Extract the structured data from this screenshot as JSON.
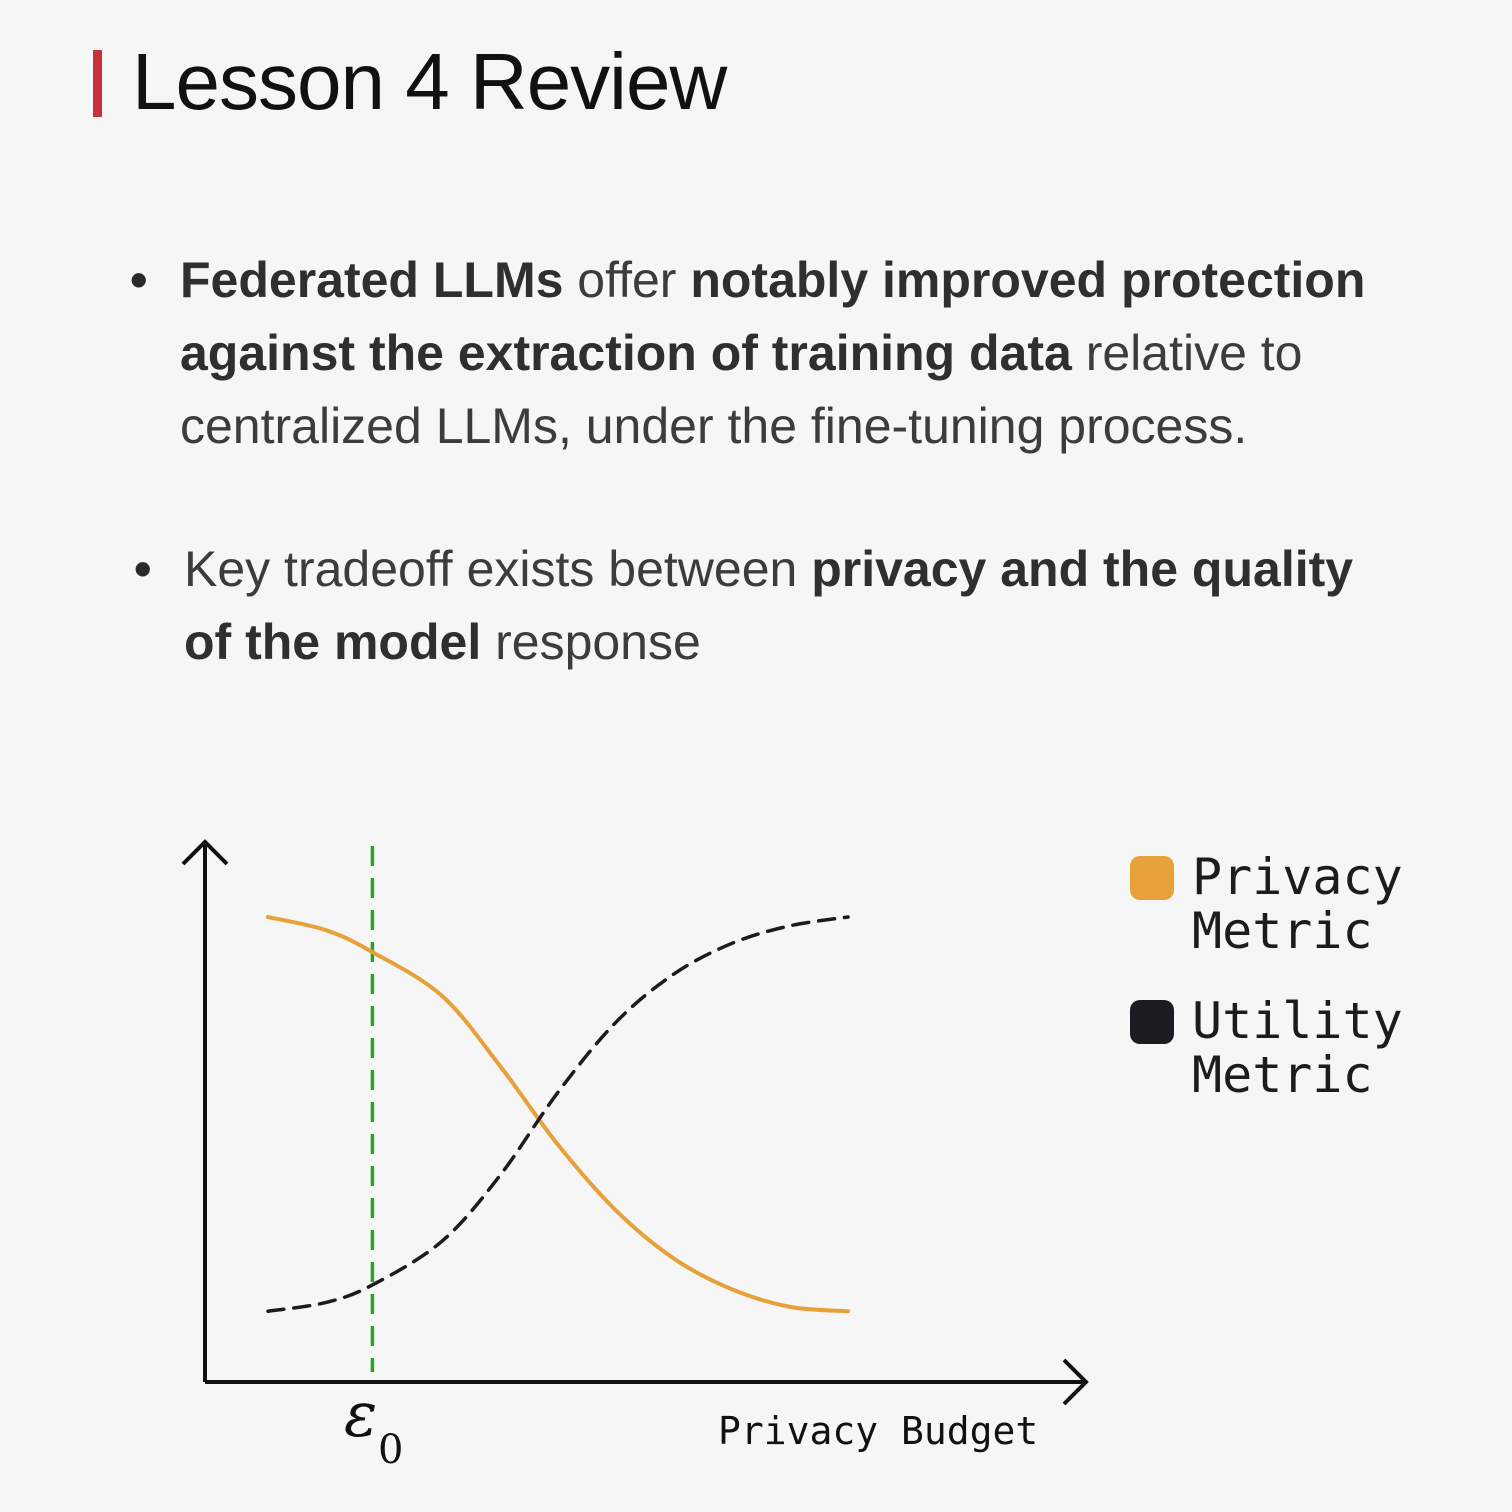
{
  "slide": {
    "title": "Lesson 4 Review",
    "accent_color": "#c8323a"
  },
  "bullets": [
    {
      "segments": [
        {
          "text": "Federated LLMs",
          "bold": true
        },
        {
          "text": " offer ",
          "bold": false
        },
        {
          "text": "notably improved protection against the extraction of training data",
          "bold": true
        },
        {
          "text": " relative to centralized LLMs, under the fine-tuning process.",
          "bold": false
        }
      ]
    },
    {
      "segments": [
        {
          "text": "Key tradeoff exists between ",
          "bold": false
        },
        {
          "text": "privacy and the quality of the model",
          "bold": true
        },
        {
          "text": " response",
          "bold": false
        }
      ]
    }
  ],
  "chart_data": {
    "type": "line",
    "title": "",
    "xlabel": "Privacy Budget",
    "ylabel": "",
    "marker_label": "ε",
    "marker_subscript": "0",
    "marker_x": 0.18,
    "marker_color": "#2ca02c",
    "legend_position": "right",
    "series": [
      {
        "name": "Privacy Metric",
        "color": "#e8a13a",
        "style": "solid",
        "x": [
          0.0,
          0.1,
          0.18,
          0.3,
          0.4,
          0.5,
          0.6,
          0.7,
          0.8,
          0.9,
          1.0
        ],
        "y": [
          0.92,
          0.89,
          0.84,
          0.74,
          0.58,
          0.4,
          0.25,
          0.14,
          0.07,
          0.03,
          0.02
        ]
      },
      {
        "name": "Utility Metric",
        "color": "#1a1c20",
        "style": "dashed",
        "x": [
          0.0,
          0.1,
          0.18,
          0.3,
          0.4,
          0.5,
          0.6,
          0.7,
          0.8,
          0.9,
          1.0
        ],
        "y": [
          0.02,
          0.04,
          0.08,
          0.18,
          0.33,
          0.52,
          0.68,
          0.79,
          0.86,
          0.9,
          0.92
        ]
      }
    ]
  }
}
